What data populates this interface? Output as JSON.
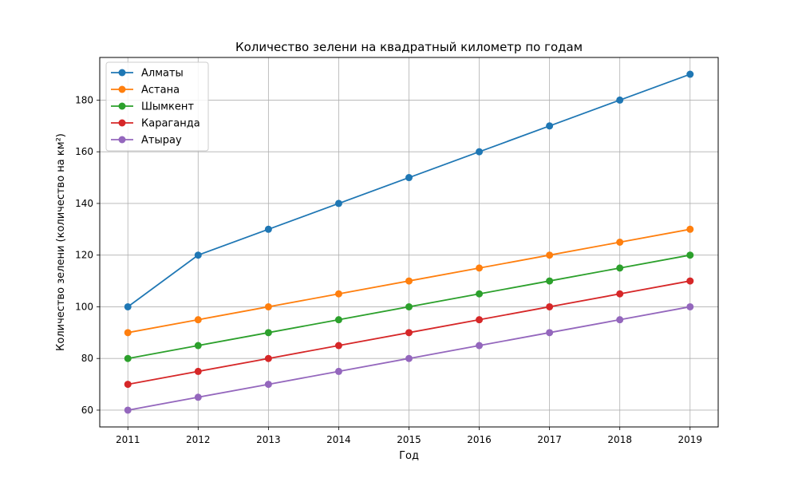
{
  "chart_data": {
    "type": "line",
    "title": "Количество зелени на квадратный километр по годам",
    "xlabel": "Год",
    "ylabel": "Количество зелени (количество на км²)",
    "x": [
      2011,
      2012,
      2013,
      2014,
      2015,
      2016,
      2017,
      2018,
      2019
    ],
    "xlim": [
      2010.6,
      2019.4
    ],
    "ylim": [
      53.5,
      196.5
    ],
    "y_ticks": [
      60,
      80,
      100,
      120,
      140,
      160,
      180
    ],
    "grid": true,
    "legend_position": "top-left",
    "series": [
      {
        "name": "Алматы",
        "color": "#1f77b4",
        "values": [
          100,
          120,
          130,
          140,
          150,
          160,
          170,
          180,
          190
        ]
      },
      {
        "name": "Астана",
        "color": "#ff7f0e",
        "values": [
          90,
          95,
          100,
          105,
          110,
          115,
          120,
          125,
          130
        ]
      },
      {
        "name": "Шымкент",
        "color": "#2ca02c",
        "values": [
          80,
          85,
          90,
          95,
          100,
          105,
          110,
          115,
          120
        ]
      },
      {
        "name": "Караганда",
        "color": "#d62728",
        "values": [
          70,
          75,
          80,
          85,
          90,
          95,
          100,
          105,
          110
        ]
      },
      {
        "name": "Атырау",
        "color": "#9467bd",
        "values": [
          60,
          65,
          70,
          75,
          80,
          85,
          90,
          95,
          100
        ]
      }
    ]
  }
}
